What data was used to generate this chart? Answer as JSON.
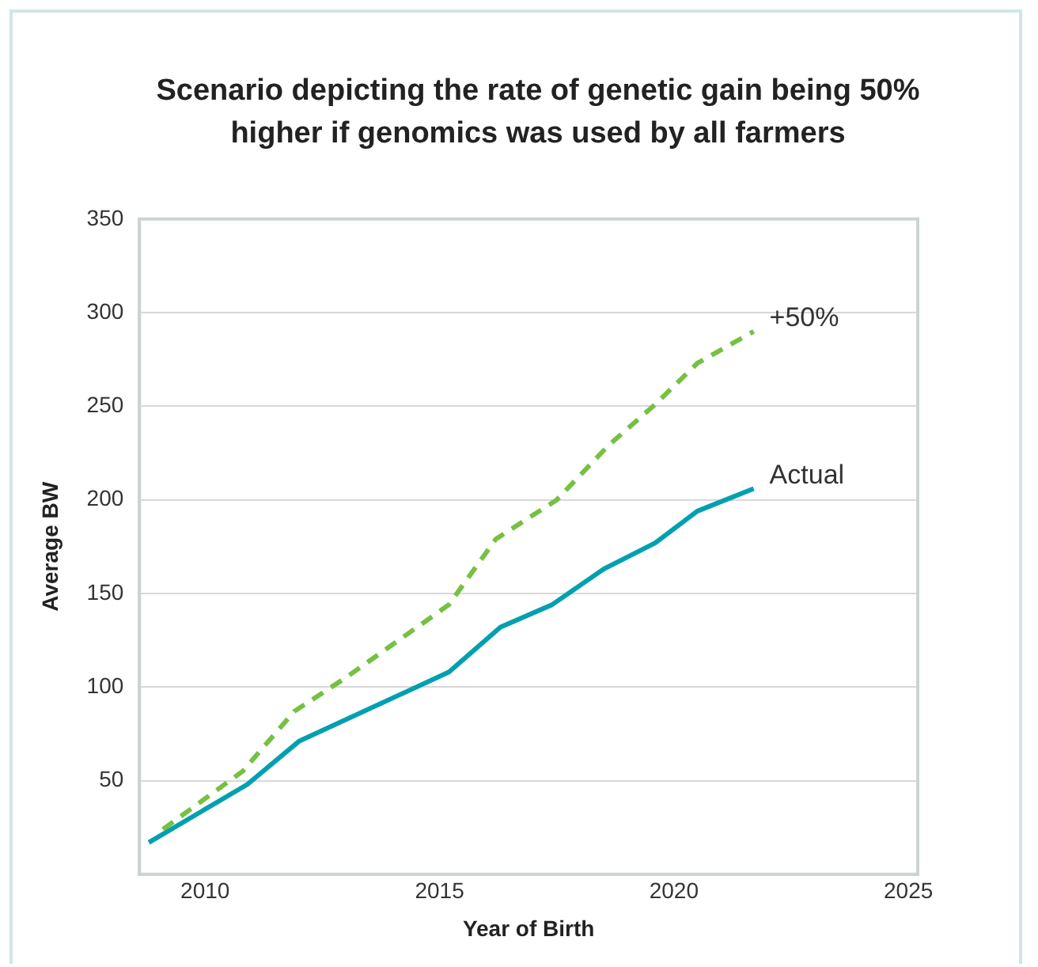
{
  "chart_data": {
    "type": "line",
    "title": "Scenario depicting the rate of genetic gain being 50% higher if genomics was used by all farmers",
    "xlabel": "Year of Birth",
    "ylabel": "Average BW",
    "series": [
      {
        "name": "+50%",
        "color": "#76c043",
        "line_style": "dashed",
        "x": [
          2009.1,
          2010.8,
          2011.9,
          2013.0,
          2015.2,
          2016.2,
          2017.5,
          2018.6,
          2019.6,
          2020.5,
          2021.7
        ],
        "values": [
          24,
          55,
          87,
          105,
          144,
          179,
          200,
          229,
          251,
          273,
          290
        ]
      },
      {
        "name": "Actual",
        "color": "#00a0b0",
        "line_style": "solid",
        "x": [
          2008.8,
          2010.9,
          2012.0,
          2015.2,
          2016.3,
          2017.4,
          2018.5,
          2019.6,
          2020.5,
          2021.7
        ],
        "values": [
          17,
          48,
          71,
          108,
          132,
          144,
          163,
          177,
          194,
          206
        ]
      }
    ],
    "xlim": [
      2008.6,
      2025.2
    ],
    "xticks": [
      2010,
      2015,
      2020,
      2025
    ],
    "ylim": [
      0,
      350
    ],
    "yticks": [
      50,
      100,
      150,
      200,
      250,
      300,
      350
    ],
    "grid": "y",
    "legend": false,
    "marker": "none"
  }
}
